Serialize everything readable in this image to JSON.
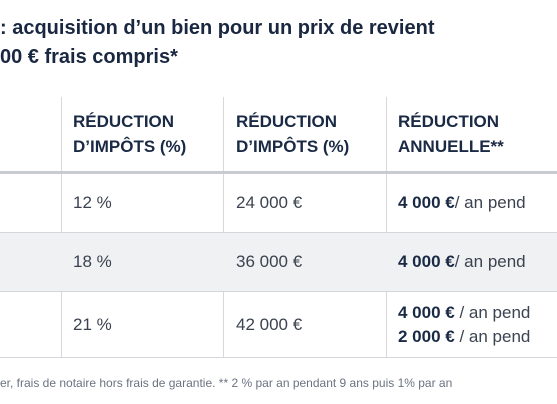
{
  "title": {
    "line1": ": acquisition d’un bien pour un prix de revient",
    "line2": "00 € frais compris*"
  },
  "table": {
    "headers": [
      {
        "line1": "RÉDUCTION",
        "line2": "D’IMPÔTS (%)"
      },
      {
        "line1": "RÉDUCTION",
        "line2": "D’IMPÔTS (%)"
      },
      {
        "line1": "RÉDUCTION",
        "line2": "ANNUELLE**"
      }
    ],
    "rows": [
      {
        "pct": "12 %",
        "amount": "24 000 €",
        "annual": [
          {
            "bold": "4 000 €",
            "rest": " / an pend"
          }
        ]
      },
      {
        "pct": "18 %",
        "amount": "36 000 €",
        "annual": [
          {
            "bold": "4 000 €",
            "rest": " / an pend"
          }
        ]
      },
      {
        "pct": "21 %",
        "amount": "42 000 €",
        "annual": [
          {
            "bold": "4 000 €",
            "rest": " / an pend"
          },
          {
            "bold": "2 000 €",
            "rest": " / an pend"
          }
        ]
      }
    ]
  },
  "footnote": "er, frais de notaire hors frais de garantie. ** 2 % par an pendant 9 ans puis 1% par an"
}
